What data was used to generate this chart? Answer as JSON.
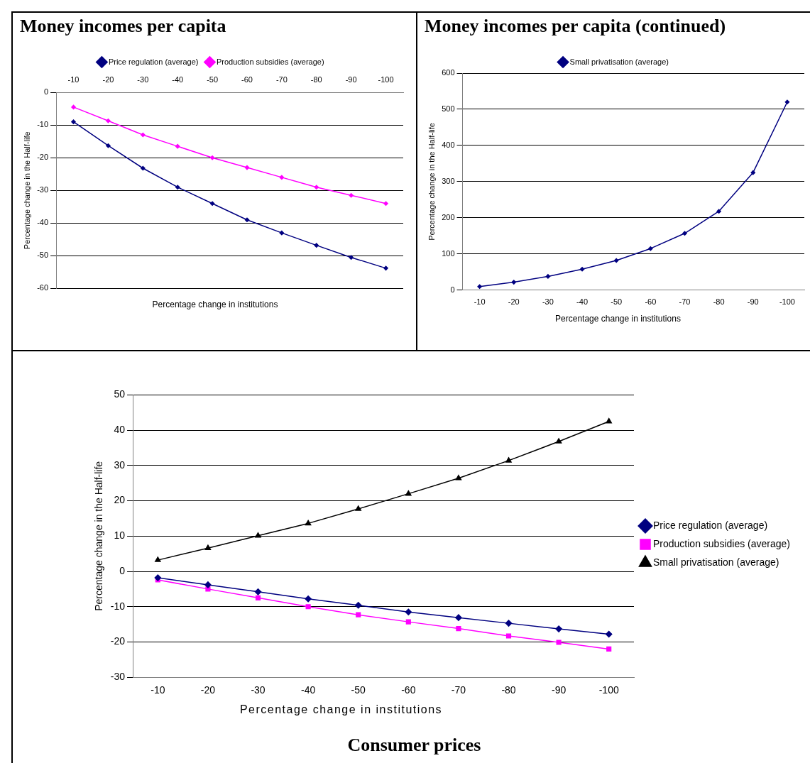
{
  "chart_data": [
    {
      "type": "line",
      "title": "Money incomes per capita",
      "xlabel": "Percentage change in institutions",
      "ylabel": "Percentage change in the Half-life",
      "categories": [
        "-10",
        "-20",
        "-30",
        "-40",
        "-50",
        "-60",
        "-70",
        "-80",
        "-90",
        "-100"
      ],
      "ylim": [
        -60,
        0
      ],
      "yticks": [
        -60,
        -50,
        -40,
        -30,
        -20,
        -10,
        0
      ],
      "grid": "y",
      "legend": "top",
      "series": [
        {
          "name": "Price regulation (average)",
          "color": "#000080",
          "marker": "diamond",
          "values": [
            -9,
            -16.3,
            -23.2,
            -29,
            -34,
            -39,
            -43,
            -46.8,
            -50.5,
            -53.8
          ]
        },
        {
          "name": "Production subsidies (average)",
          "color": "#ff00ff",
          "marker": "diamond",
          "values": [
            -4.5,
            -8.7,
            -13,
            -16.5,
            -20,
            -23,
            -26,
            -29,
            -31.5,
            -34
          ]
        }
      ]
    },
    {
      "type": "line",
      "title": "Money incomes per capita (continued)",
      "xlabel": "Percentage change in institutions",
      "ylabel": "Percentage change in the Half-life",
      "categories": [
        "-10",
        "-20",
        "-30",
        "-40",
        "-50",
        "-60",
        "-70",
        "-80",
        "-90",
        "-100"
      ],
      "ylim": [
        0,
        600
      ],
      "yticks": [
        0,
        100,
        200,
        300,
        400,
        500,
        600
      ],
      "grid": "y",
      "legend": "top",
      "series": [
        {
          "name": "Small privatisation (average)",
          "color": "#000080",
          "marker": "diamond",
          "values": [
            10,
            22,
            38,
            58,
            82,
            115,
            157,
            218,
            325,
            520
          ]
        }
      ]
    },
    {
      "type": "line",
      "title": "Consumer prices",
      "xlabel": "Percentage change in institutions",
      "ylabel": "Percentage change in the Half-life",
      "categories": [
        "-10",
        "-20",
        "-30",
        "-40",
        "-50",
        "-60",
        "-70",
        "-80",
        "-90",
        "-100"
      ],
      "ylim": [
        -30,
        50
      ],
      "yticks": [
        -30,
        -20,
        -10,
        0,
        10,
        20,
        30,
        40,
        50
      ],
      "grid": "y",
      "legend": "right",
      "series": [
        {
          "name": "Price regulation (average)",
          "color": "#000080",
          "marker": "diamond",
          "values": [
            -1.8,
            -3.8,
            -5.8,
            -7.8,
            -9.6,
            -11.5,
            -13.1,
            -14.7,
            -16.3,
            -17.8
          ]
        },
        {
          "name": "Production subsidies (average)",
          "color": "#ff00ff",
          "marker": "square",
          "values": [
            -2.4,
            -5,
            -7.5,
            -10,
            -12.3,
            -14.3,
            -16.2,
            -18.3,
            -20.1,
            -22
          ]
        },
        {
          "name": "Small privatisation (average)",
          "color": "#000000",
          "marker": "triangle",
          "values": [
            3.2,
            6.6,
            10.1,
            13.6,
            17.7,
            22,
            26.4,
            31.4,
            36.8,
            42.5
          ]
        }
      ]
    }
  ]
}
